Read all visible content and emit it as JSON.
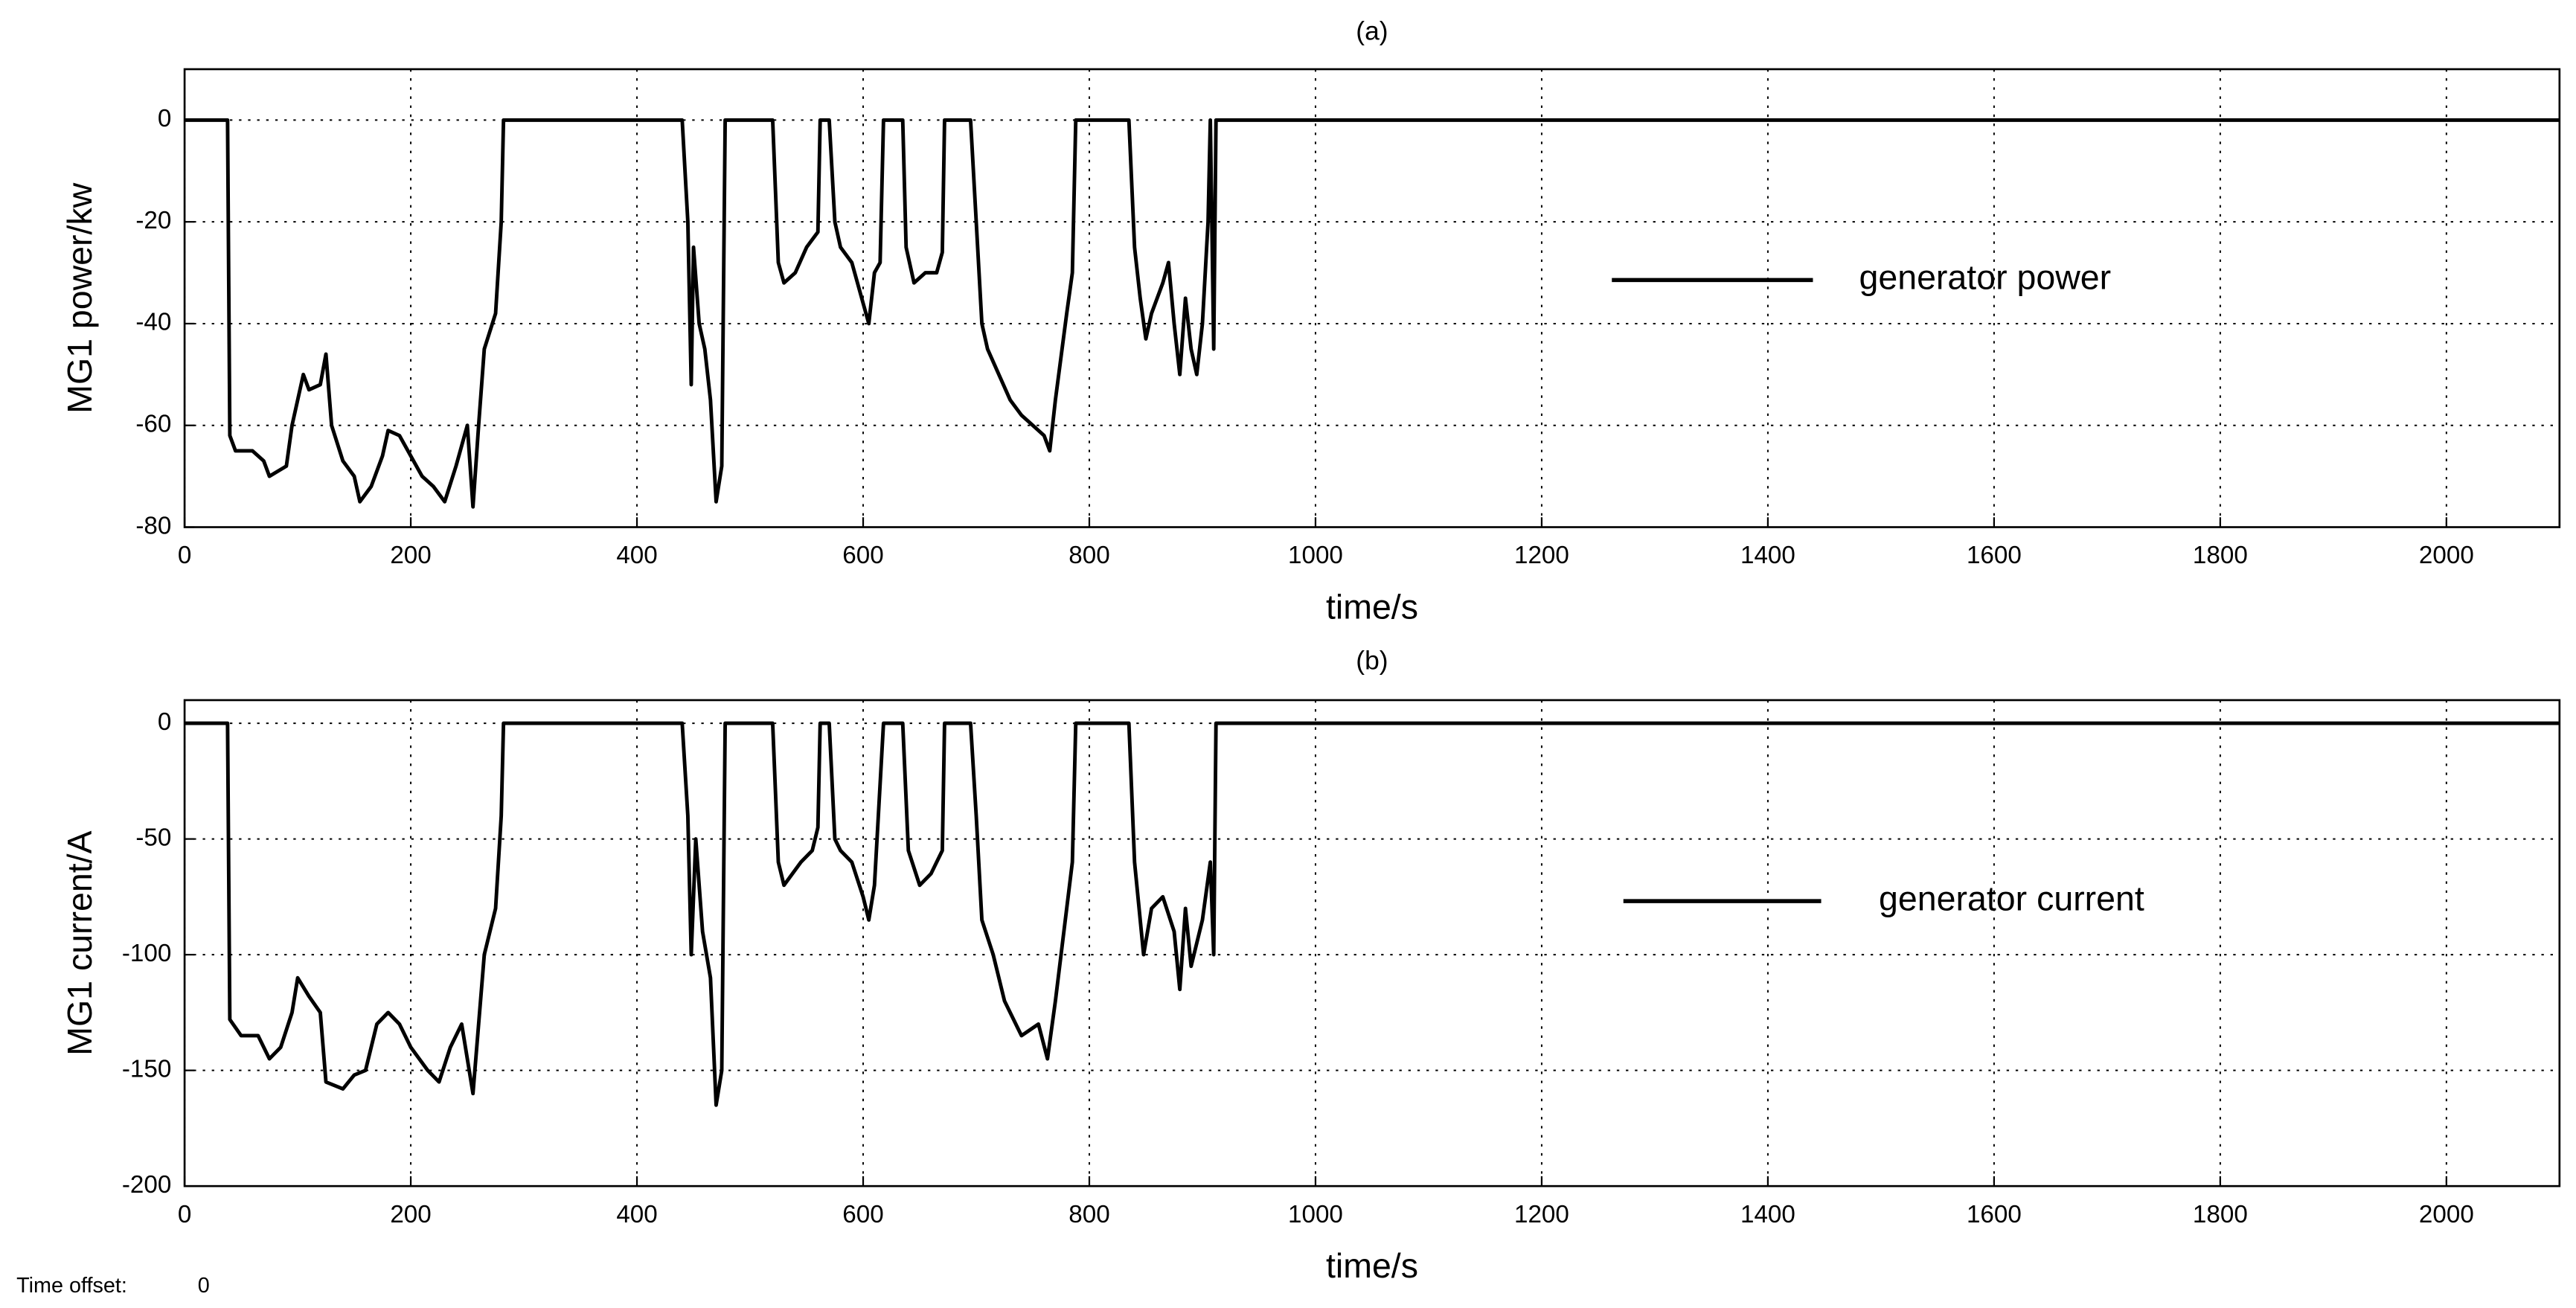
{
  "chart_data": [
    {
      "type": "line",
      "title": "(a)",
      "xlabel": "time/s",
      "ylabel": "MG1 power/kw",
      "xlim": [
        0,
        2100
      ],
      "ylim": [
        -80,
        10
      ],
      "grid": true,
      "legend": "center-right",
      "xticks": [
        0,
        200,
        400,
        600,
        800,
        1000,
        1200,
        1400,
        1600,
        1800,
        2000
      ],
      "yticks": [
        -80,
        -60,
        -40,
        -20,
        0
      ],
      "x": [
        0,
        38,
        40,
        45,
        60,
        70,
        75,
        90,
        95,
        100,
        105,
        110,
        120,
        125,
        130,
        140,
        150,
        155,
        165,
        175,
        180,
        190,
        200,
        210,
        220,
        230,
        240,
        250,
        255,
        260,
        265,
        275,
        280,
        282,
        440,
        445,
        448,
        450,
        455,
        460,
        465,
        470,
        475,
        478,
        520,
        525,
        530,
        540,
        550,
        560,
        562,
        570,
        575,
        580,
        590,
        600,
        605,
        610,
        615,
        618,
        635,
        638,
        645,
        655,
        665,
        670,
        672,
        695,
        700,
        705,
        710,
        720,
        730,
        740,
        750,
        760,
        765,
        770,
        780,
        785,
        788,
        835,
        840,
        845,
        850,
        855,
        865,
        870,
        875,
        880,
        885,
        890,
        895,
        900,
        905,
        907,
        910,
        912,
        2100
      ],
      "series": [
        {
          "name": "generator power",
          "color": "#000000",
          "values": [
            0,
            0,
            -62,
            -65,
            -65,
            -67,
            -70,
            -68,
            -60,
            -55,
            -50,
            -53,
            -52,
            -46,
            -60,
            -67,
            -70,
            -75,
            -72,
            -66,
            -61,
            -62,
            -66,
            -70,
            -72,
            -75,
            -68,
            -60,
            -76,
            -60,
            -45,
            -38,
            -20,
            0,
            0,
            -20,
            -52,
            -25,
            -40,
            -45,
            -55,
            -75,
            -68,
            0,
            0,
            -28,
            -32,
            -30,
            -25,
            -22,
            0,
            0,
            -20,
            -25,
            -28,
            -36,
            -40,
            -30,
            -28,
            0,
            0,
            -25,
            -32,
            -30,
            -30,
            -26,
            0,
            0,
            -20,
            -40,
            -45,
            -50,
            -55,
            -58,
            -60,
            -62,
            -65,
            -55,
            -38,
            -30,
            0,
            0,
            -25,
            -35,
            -43,
            -38,
            -32,
            -28,
            -40,
            -50,
            -35,
            -45,
            -50,
            -40,
            -20,
            0,
            -45,
            0,
            0
          ]
        }
      ]
    },
    {
      "type": "line",
      "title": "(b)",
      "xlabel": "time/s",
      "ylabel": "MG1 current/A",
      "xlim": [
        0,
        2100
      ],
      "ylim": [
        -200,
        10
      ],
      "grid": true,
      "legend": "center-right",
      "xticks": [
        0,
        200,
        400,
        600,
        800,
        1000,
        1200,
        1400,
        1600,
        1800,
        2000
      ],
      "yticks": [
        -200,
        -150,
        -100,
        -50,
        0
      ],
      "x": [
        0,
        38,
        40,
        50,
        65,
        75,
        85,
        95,
        100,
        110,
        120,
        125,
        140,
        150,
        160,
        170,
        180,
        190,
        200,
        215,
        225,
        235,
        245,
        255,
        260,
        265,
        275,
        280,
        282,
        440,
        445,
        448,
        452,
        458,
        465,
        470,
        475,
        478,
        520,
        525,
        530,
        545,
        555,
        560,
        562,
        570,
        575,
        580,
        590,
        600,
        605,
        610,
        618,
        635,
        640,
        650,
        660,
        670,
        672,
        695,
        700,
        705,
        715,
        725,
        740,
        755,
        763,
        770,
        780,
        785,
        788,
        835,
        840,
        848,
        855,
        865,
        875,
        880,
        885,
        890,
        900,
        907,
        910,
        912,
        2100
      ],
      "series": [
        {
          "name": "generator current",
          "color": "#000000",
          "values": [
            0,
            0,
            -128,
            -135,
            -135,
            -145,
            -140,
            -125,
            -110,
            -118,
            -125,
            -155,
            -158,
            -152,
            -150,
            -130,
            -125,
            -130,
            -140,
            -150,
            -155,
            -140,
            -130,
            -160,
            -130,
            -100,
            -80,
            -40,
            0,
            0,
            -40,
            -100,
            -50,
            -90,
            -110,
            -165,
            -150,
            0,
            0,
            -60,
            -70,
            -60,
            -55,
            -45,
            0,
            0,
            -50,
            -55,
            -60,
            -75,
            -85,
            -70,
            0,
            0,
            -55,
            -70,
            -65,
            -55,
            0,
            0,
            -40,
            -85,
            -100,
            -120,
            -135,
            -130,
            -145,
            -120,
            -80,
            -60,
            0,
            0,
            -60,
            -100,
            -80,
            -75,
            -90,
            -115,
            -80,
            -105,
            -85,
            -60,
            -100,
            0,
            0
          ]
        }
      ]
    }
  ],
  "footer": {
    "label": "Time offset:",
    "value": 0
  }
}
